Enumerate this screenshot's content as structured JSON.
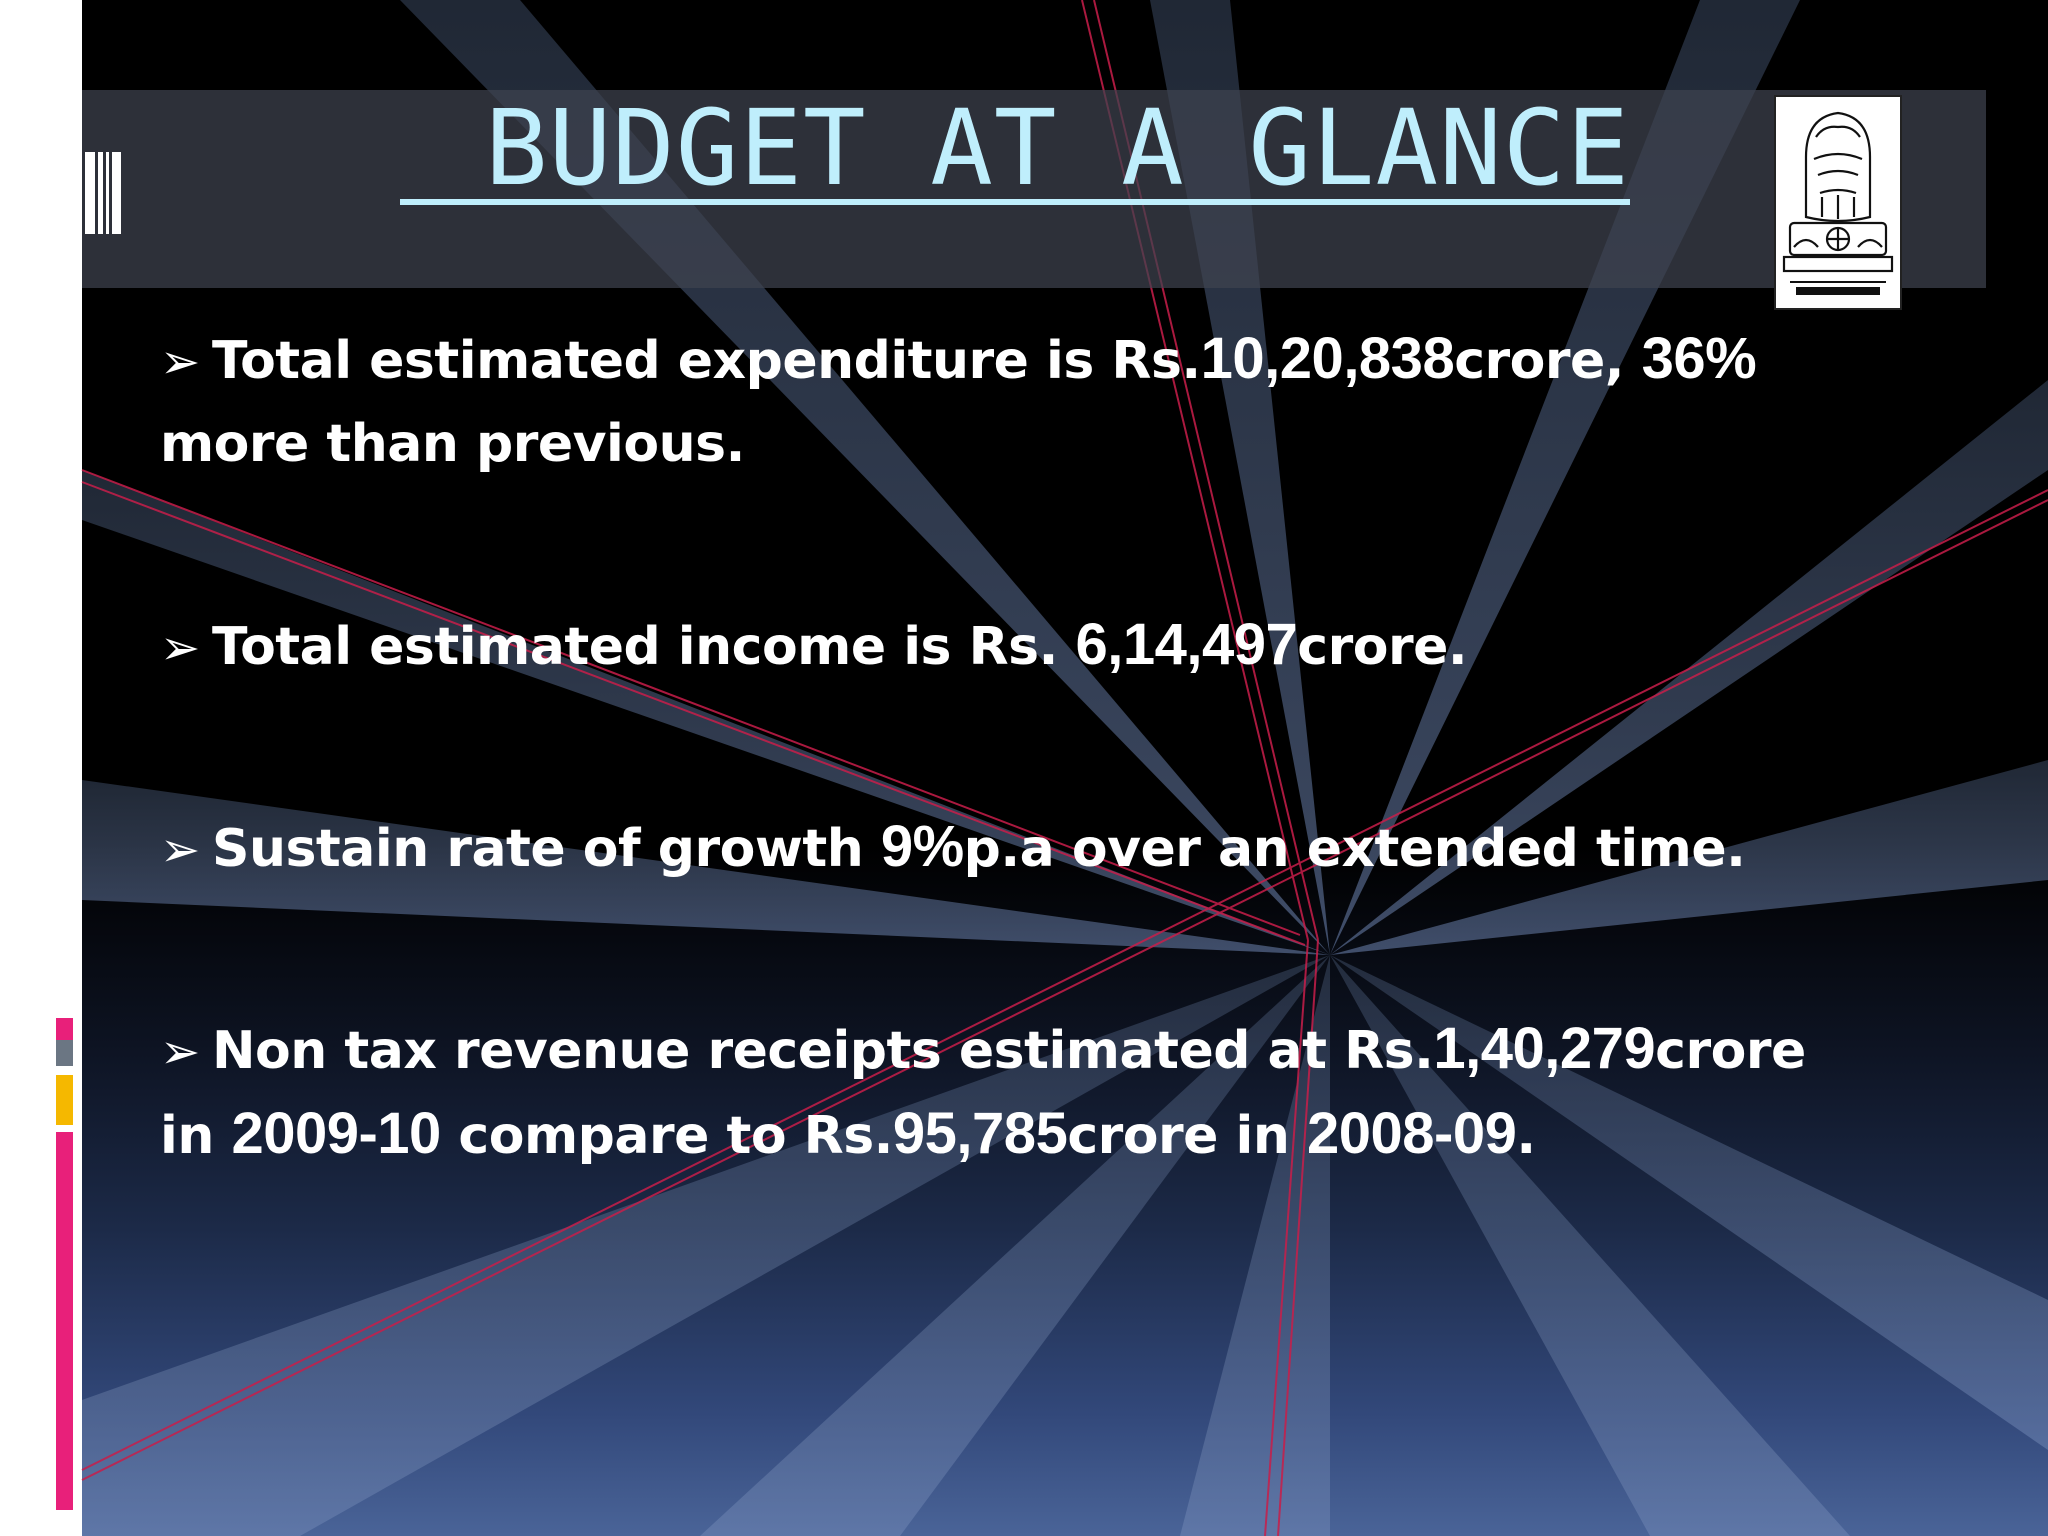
{
  "slide": {
    "title": " BUDGET AT A GLANCE",
    "emblem_caption": "सत्यमेव जयते",
    "bullet_marker": "➢",
    "bullets": [
      {
        "line1": [
          {
            "t": "Total estimated expenditure is Rs.",
            "num": false
          },
          {
            "t": "10,20,838",
            "num": true
          },
          {
            "t": "crore, ",
            "num": false
          },
          {
            "t": "36%",
            "num": true
          }
        ],
        "line2": [
          {
            "t": "more than previous.",
            "num": false
          }
        ]
      },
      {
        "line1": [
          {
            "t": "Total estimated income is Rs. ",
            "num": false
          },
          {
            "t": "6,14,497",
            "num": true
          },
          {
            "t": "crore.",
            "num": false
          }
        ]
      },
      {
        "line1": [
          {
            "t": "Sustain rate of growth ",
            "num": false
          },
          {
            "t": "9%",
            "num": true
          },
          {
            "t": "p.a over an extended time.",
            "num": false
          }
        ]
      },
      {
        "line1": [
          {
            "t": "Non tax revenue receipts estimated at Rs.",
            "num": false
          },
          {
            "t": "1,40,279",
            "num": true
          },
          {
            "t": "crore",
            "num": false
          }
        ],
        "line2": [
          {
            "t": "in ",
            "num": false
          },
          {
            "t": "2009-10",
            "num": true
          },
          {
            "t": " compare to Rs.",
            "num": false
          },
          {
            "t": "95,785",
            "num": true
          },
          {
            "t": "crore in ",
            "num": false
          },
          {
            "t": "2008-09",
            "num": true
          },
          {
            "t": ".",
            "num": false
          }
        ]
      }
    ]
  },
  "colors": {
    "title": "#bfeefc",
    "text": "#ffffff",
    "accent_pink": "#e8207a",
    "accent_gold": "#f5b800",
    "accent_gray": "#6b7683",
    "ray_red": "#c81e4a"
  }
}
